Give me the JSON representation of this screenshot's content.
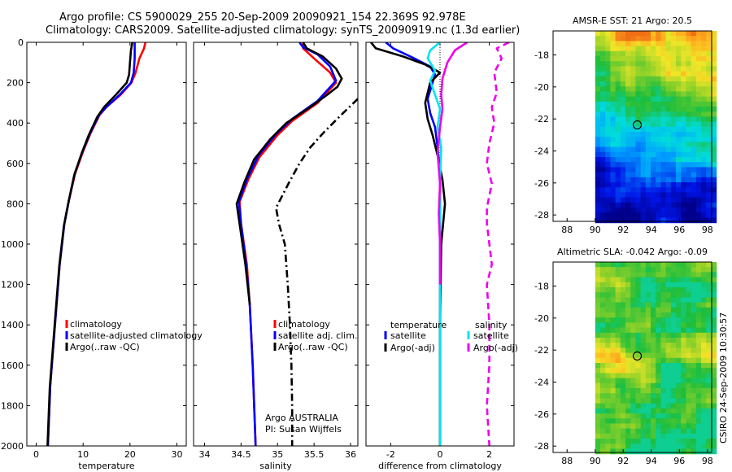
{
  "title_line1": "Argo profile: CS 5900029_255 20-Sep-2009 20090921_154 22.369S 92.978E",
  "title_line2": "Climatology: CARS2009. Satellite-adjusted climatology: synTS_20090919.nc (1.3d earlier)",
  "side_note": "CSIRO 24-Sep-2009 10:30:57",
  "colors": {
    "red": "#ff0000",
    "blue": "#0000ff",
    "black": "#000000",
    "cyan": "#00e5ee",
    "magenta": "#ee00ee"
  },
  "chart_data": [
    {
      "type": "line",
      "xlabel": "temperature",
      "ylabel": "",
      "ylim": [
        2000,
        0
      ],
      "xlim": [
        -2,
        32
      ],
      "xticks": [
        0,
        10,
        20,
        30
      ],
      "yticks": [
        0,
        200,
        400,
        600,
        800,
        1000,
        1200,
        1400,
        1600,
        1800,
        2000
      ],
      "legend": [
        "climatology",
        "satellite-adjusted climatology",
        "Argo(..raw -QC)"
      ],
      "series": [
        {
          "name": "climatology",
          "color": "red",
          "dash": "solid",
          "points": [
            [
              23.3,
              0
            ],
            [
              23,
              30
            ],
            [
              22,
              80
            ],
            [
              21.2,
              150
            ],
            [
              20.3,
              200
            ],
            [
              18,
              260
            ],
            [
              15,
              320
            ],
            [
              13.5,
              360
            ],
            [
              11.6,
              450
            ],
            [
              10,
              540
            ],
            [
              8.3,
              650
            ],
            [
              7,
              780
            ],
            [
              6,
              900
            ],
            [
              5,
              1100
            ],
            [
              4,
              1400
            ],
            [
              3,
              1700
            ],
            [
              2.5,
              2000
            ]
          ]
        },
        {
          "name": "satellite-adjusted climatology",
          "color": "blue",
          "dash": "solid",
          "points": [
            [
              21,
              0
            ],
            [
              21,
              40
            ],
            [
              21,
              80
            ],
            [
              20.8,
              150
            ],
            [
              20.2,
              200
            ],
            [
              17.8,
              260
            ],
            [
              15,
              320
            ],
            [
              13.4,
              360
            ],
            [
              11.5,
              450
            ],
            [
              9.9,
              540
            ],
            [
              8.2,
              650
            ],
            [
              7,
              780
            ],
            [
              6,
              900
            ],
            [
              5,
              1100
            ],
            [
              4,
              1400
            ],
            [
              3,
              1700
            ],
            [
              2.5,
              2000
            ]
          ]
        },
        {
          "name": "Argo(..raw -QC)",
          "color": "black",
          "dash": "solid",
          "points": [
            [
              20.5,
              0
            ],
            [
              20.2,
              40
            ],
            [
              20,
              100
            ],
            [
              19.8,
              160
            ],
            [
              19.3,
              200
            ],
            [
              17,
              260
            ],
            [
              14.5,
              320
            ],
            [
              13,
              370
            ],
            [
              11.2,
              460
            ],
            [
              9.7,
              550
            ],
            [
              8.1,
              660
            ],
            [
              6.9,
              790
            ],
            [
              5.9,
              910
            ],
            [
              4.9,
              1110
            ],
            [
              3.9,
              1410
            ],
            [
              2.9,
              1710
            ],
            [
              2.4,
              2000
            ]
          ]
        }
      ]
    },
    {
      "type": "line",
      "xlabel": "salinity",
      "ylabel": "",
      "ylim": [
        2000,
        0
      ],
      "xlim": [
        33.85,
        36.1
      ],
      "xticks": [
        34,
        34.5,
        35,
        35.5,
        36
      ],
      "yticks": [
        0,
        200,
        400,
        600,
        800,
        1000,
        1200,
        1400,
        1600,
        1800,
        2000
      ],
      "legend": [
        "climatology",
        "satellite adj. clim.",
        "Argo(..raw -QC)"
      ],
      "annotation": [
        "Argo AUSTRALIA",
        "PI: Susan Wijffels"
      ],
      "series": [
        {
          "name": "climatology",
          "color": "red",
          "dash": "solid",
          "points": [
            [
              35.35,
              0
            ],
            [
              35.35,
              30
            ],
            [
              35.5,
              80
            ],
            [
              35.72,
              150
            ],
            [
              35.8,
              200
            ],
            [
              35.55,
              300
            ],
            [
              35.2,
              390
            ],
            [
              35,
              460
            ],
            [
              34.75,
              570
            ],
            [
              34.6,
              680
            ],
            [
              34.48,
              790
            ],
            [
              34.5,
              900
            ],
            [
              34.58,
              1100
            ],
            [
              34.62,
              1300
            ],
            [
              34.66,
              1600
            ],
            [
              34.7,
              2000
            ]
          ]
        },
        {
          "name": "satellite adj. clim.",
          "color": "blue",
          "dash": "solid",
          "points": [
            [
              35.3,
              0
            ],
            [
              35.35,
              25
            ],
            [
              35.55,
              60
            ],
            [
              35.72,
              120
            ],
            [
              35.8,
              190
            ],
            [
              35.55,
              290
            ],
            [
              35.2,
              380
            ],
            [
              34.98,
              455
            ],
            [
              34.74,
              560
            ],
            [
              34.58,
              680
            ],
            [
              34.47,
              790
            ],
            [
              34.5,
              900
            ],
            [
              34.57,
              1100
            ],
            [
              34.62,
              1300
            ],
            [
              34.66,
              1600
            ],
            [
              34.7,
              2000
            ]
          ]
        },
        {
          "name": "Argo(..raw -QC)",
          "color": "black",
          "dash": "solid",
          "points": [
            [
              35.35,
              0
            ],
            [
              35.4,
              30
            ],
            [
              35.62,
              70
            ],
            [
              35.8,
              130
            ],
            [
              35.88,
              180
            ],
            [
              35.82,
              220
            ],
            [
              35.68,
              260
            ],
            [
              35.45,
              320
            ],
            [
              35.12,
              400
            ],
            [
              34.9,
              480
            ],
            [
              34.68,
              580
            ],
            [
              34.55,
              690
            ],
            [
              34.44,
              800
            ],
            [
              34.48,
              900
            ],
            [
              34.56,
              1100
            ],
            [
              34.62,
              1300
            ]
          ]
        },
        {
          "name": "Argo(..raw -QC) raw",
          "color": "black",
          "dash": "dashdot",
          "points": [
            [
              36.1,
              280
            ],
            [
              35.9,
              350
            ],
            [
              35.65,
              440
            ],
            [
              35.45,
              520
            ],
            [
              35.3,
              600
            ],
            [
              35.15,
              700
            ],
            [
              34.98,
              820
            ],
            [
              35.02,
              900
            ],
            [
              35.1,
              1000
            ],
            [
              35.14,
              1200
            ],
            [
              35.17,
              1400
            ],
            [
              35.19,
              1600
            ],
            [
              35.2,
              1800
            ],
            [
              35.2,
              2000
            ]
          ]
        }
      ]
    },
    {
      "type": "line",
      "xlabel": "difference from climatology",
      "ylabel": "",
      "ylim": [
        2000,
        0
      ],
      "xlim": [
        -3,
        3
      ],
      "xticks": [
        -2,
        0,
        2
      ],
      "yticks": [
        0,
        200,
        400,
        600,
        800,
        1000,
        1200,
        1400,
        1600,
        1800,
        2000
      ],
      "legend_title_t": "temperature",
      "legend_title_s": "salinity",
      "legend": [
        "satellite",
        "Argo(-adj)",
        "satellite",
        "Argo(-adj)"
      ],
      "series": [
        {
          "name": "temperature satellite",
          "color": "blue",
          "dash": "solid",
          "points": [
            [
              -2.2,
              0
            ],
            [
              -1.9,
              30
            ],
            [
              -1.2,
              70
            ],
            [
              -0.4,
              120
            ],
            [
              -0.2,
              160
            ],
            [
              -0.5,
              280
            ],
            [
              -0.4,
              350
            ],
            [
              -0.2,
              420
            ],
            [
              -0.1,
              520
            ],
            [
              0,
              650
            ],
            [
              0,
              1000
            ],
            [
              0,
              1400
            ],
            [
              0,
              2000
            ]
          ]
        },
        {
          "name": "temperature Argo(-adj)",
          "color": "black",
          "dash": "solid",
          "points": [
            [
              -2.8,
              0
            ],
            [
              -2.6,
              30
            ],
            [
              -1.5,
              70
            ],
            [
              -0.6,
              110
            ],
            [
              0,
              150
            ],
            [
              -0.4,
              200
            ],
            [
              -0.6,
              300
            ],
            [
              -0.5,
              380
            ],
            [
              -0.3,
              460
            ],
            [
              -0.1,
              560
            ],
            [
              0.1,
              680
            ],
            [
              0.2,
              800
            ],
            [
              0.05,
              1000
            ],
            [
              0,
              1400
            ],
            [
              0,
              2000
            ]
          ]
        },
        {
          "name": "salinity satellite",
          "color": "cyan",
          "dash": "solid",
          "points": [
            [
              0,
              0
            ],
            [
              -0.4,
              40
            ],
            [
              -0.5,
              80
            ],
            [
              -0.2,
              140
            ],
            [
              -0.4,
              190
            ],
            [
              -0.2,
              260
            ],
            [
              0,
              330
            ],
            [
              -0.1,
              420
            ],
            [
              0.05,
              520
            ],
            [
              0,
              700
            ],
            [
              0,
              1200
            ],
            [
              0,
              2000
            ]
          ]
        },
        {
          "name": "salinity Argo(-adj)",
          "color": "magenta",
          "dash": "solid",
          "points": [
            [
              1.1,
              0
            ],
            [
              0.6,
              40
            ],
            [
              0.3,
              100
            ],
            [
              0.1,
              180
            ],
            [
              0.05,
              260
            ],
            [
              0.1,
              330
            ],
            [
              0,
              420
            ],
            [
              -0.1,
              550
            ],
            [
              0,
              700
            ],
            [
              -0.05,
              850
            ],
            [
              0,
              1000
            ],
            [
              0,
              1200
            ]
          ]
        },
        {
          "name": "salinity Argo raw",
          "color": "magenta",
          "dash": "dashed",
          "points": [
            [
              2.8,
              0
            ],
            [
              2.3,
              30
            ],
            [
              2.5,
              80
            ],
            [
              2.2,
              150
            ],
            [
              2.3,
              250
            ],
            [
              2.1,
              320
            ],
            [
              2.2,
              400
            ],
            [
              2,
              500
            ],
            [
              1.9,
              600
            ],
            [
              2.1,
              700
            ],
            [
              1.9,
              820
            ],
            [
              1.9,
              900
            ],
            [
              2,
              1000
            ],
            [
              2.1,
              1100
            ],
            [
              1.9,
              1200
            ],
            [
              2,
              1400
            ],
            [
              2,
              1600
            ],
            [
              1.9,
              1800
            ],
            [
              2,
              2000
            ]
          ]
        }
      ]
    },
    {
      "type": "heatmap",
      "title": "AMSR-E SST: 21 Argo: 20.5",
      "xlim": [
        87,
        98.3
      ],
      "ylim": [
        -28.4,
        -16.5
      ],
      "xticks": [
        88,
        90,
        92,
        94,
        96,
        98
      ],
      "yticks": [
        -18,
        -20,
        -22,
        -24,
        -26,
        -28
      ],
      "data_xlim": [
        90,
        98.3
      ],
      "marker": [
        93,
        -22.37
      ],
      "palette": "sst"
    },
    {
      "type": "heatmap",
      "title": "Altimetric SLA: -0.042 Argo: -0.09",
      "xlim": [
        87,
        98.3
      ],
      "ylim": [
        -28.4,
        -16.5
      ],
      "xticks": [
        88,
        90,
        92,
        94,
        96,
        98
      ],
      "yticks": [
        -18,
        -20,
        -22,
        -24,
        -26,
        -28
      ],
      "data_xlim": [
        90,
        98.3
      ],
      "marker": [
        93,
        -22.37
      ],
      "palette": "sla"
    }
  ]
}
